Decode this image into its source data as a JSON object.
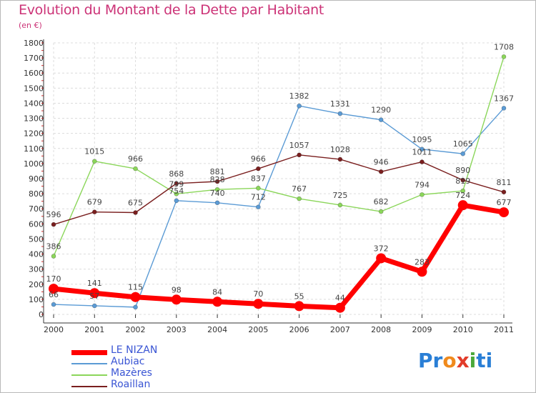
{
  "title": "Evolution du Montant de la Dette par Habitant",
  "subtitle": "(en €)",
  "logo": {
    "text": "Proxiti",
    "letters": [
      "P",
      "r",
      "o",
      "x",
      "i",
      "t",
      "i"
    ],
    "colors": [
      "#2a7fd6",
      "#2a7fd6",
      "#f08a1c",
      "#e23c2a",
      "#4aa83a",
      "#2a7fd6",
      "#2a7fd6"
    ]
  },
  "chart_data": {
    "type": "line",
    "x": [
      "2000",
      "2001",
      "2002",
      "2003",
      "2004",
      "2005",
      "2006",
      "2007",
      "2008",
      "2009",
      "2010",
      "2011"
    ],
    "ylim": [
      0,
      1800
    ],
    "yticks": [
      "0",
      "100",
      "200",
      "300",
      "400",
      "500",
      "600",
      "700",
      "800",
      "900",
      "1000",
      "1100",
      "1200",
      "1300",
      "1400",
      "1500",
      "1600",
      "1700",
      "1800"
    ],
    "grid": true,
    "legend_position": "bottom-left",
    "series": [
      {
        "name": "LE NIZAN",
        "color": "#ff0000",
        "width": 7,
        "marker": 7,
        "values": [
          170,
          141,
          115,
          98,
          84,
          70,
          55,
          44,
          372,
          283,
          724,
          677
        ],
        "labels": [
          "170",
          "141",
          "115",
          "98",
          "84",
          "70",
          "55",
          "44",
          "372",
          "283",
          "724",
          "677"
        ]
      },
      {
        "name": "Aubiac",
        "color": "#5b9bd5",
        "width": 1.4,
        "marker": 3,
        "values": [
          66,
          57,
          48,
          754,
          740,
          712,
          1382,
          1331,
          1290,
          1095,
          1065,
          1367
        ],
        "labels": [
          "66",
          "57",
          "",
          "754",
          "740",
          "712",
          "1382",
          "1331",
          "1290",
          "1095",
          "1065",
          "1367"
        ]
      },
      {
        "name": "Mazères",
        "color": "#8bd65a",
        "width": 1.4,
        "marker": 3,
        "values": [
          386,
          1015,
          966,
          799,
          828,
          837,
          767,
          725,
          682,
          794,
          819,
          1708
        ],
        "labels": [
          "386",
          "1015",
          "966",
          "799",
          "828",
          "837",
          "767",
          "725",
          "682",
          "794",
          "819",
          "1708"
        ]
      },
      {
        "name": "Roaillan",
        "color": "#7a1f1f",
        "width": 1.4,
        "marker": 3,
        "values": [
          596,
          679,
          675,
          868,
          881,
          966,
          1057,
          1028,
          946,
          1011,
          890,
          811
        ],
        "labels": [
          "596",
          "679",
          "675",
          "868",
          "881",
          "966",
          "1057",
          "1028",
          "946",
          "1011",
          "890",
          "811"
        ]
      }
    ]
  }
}
